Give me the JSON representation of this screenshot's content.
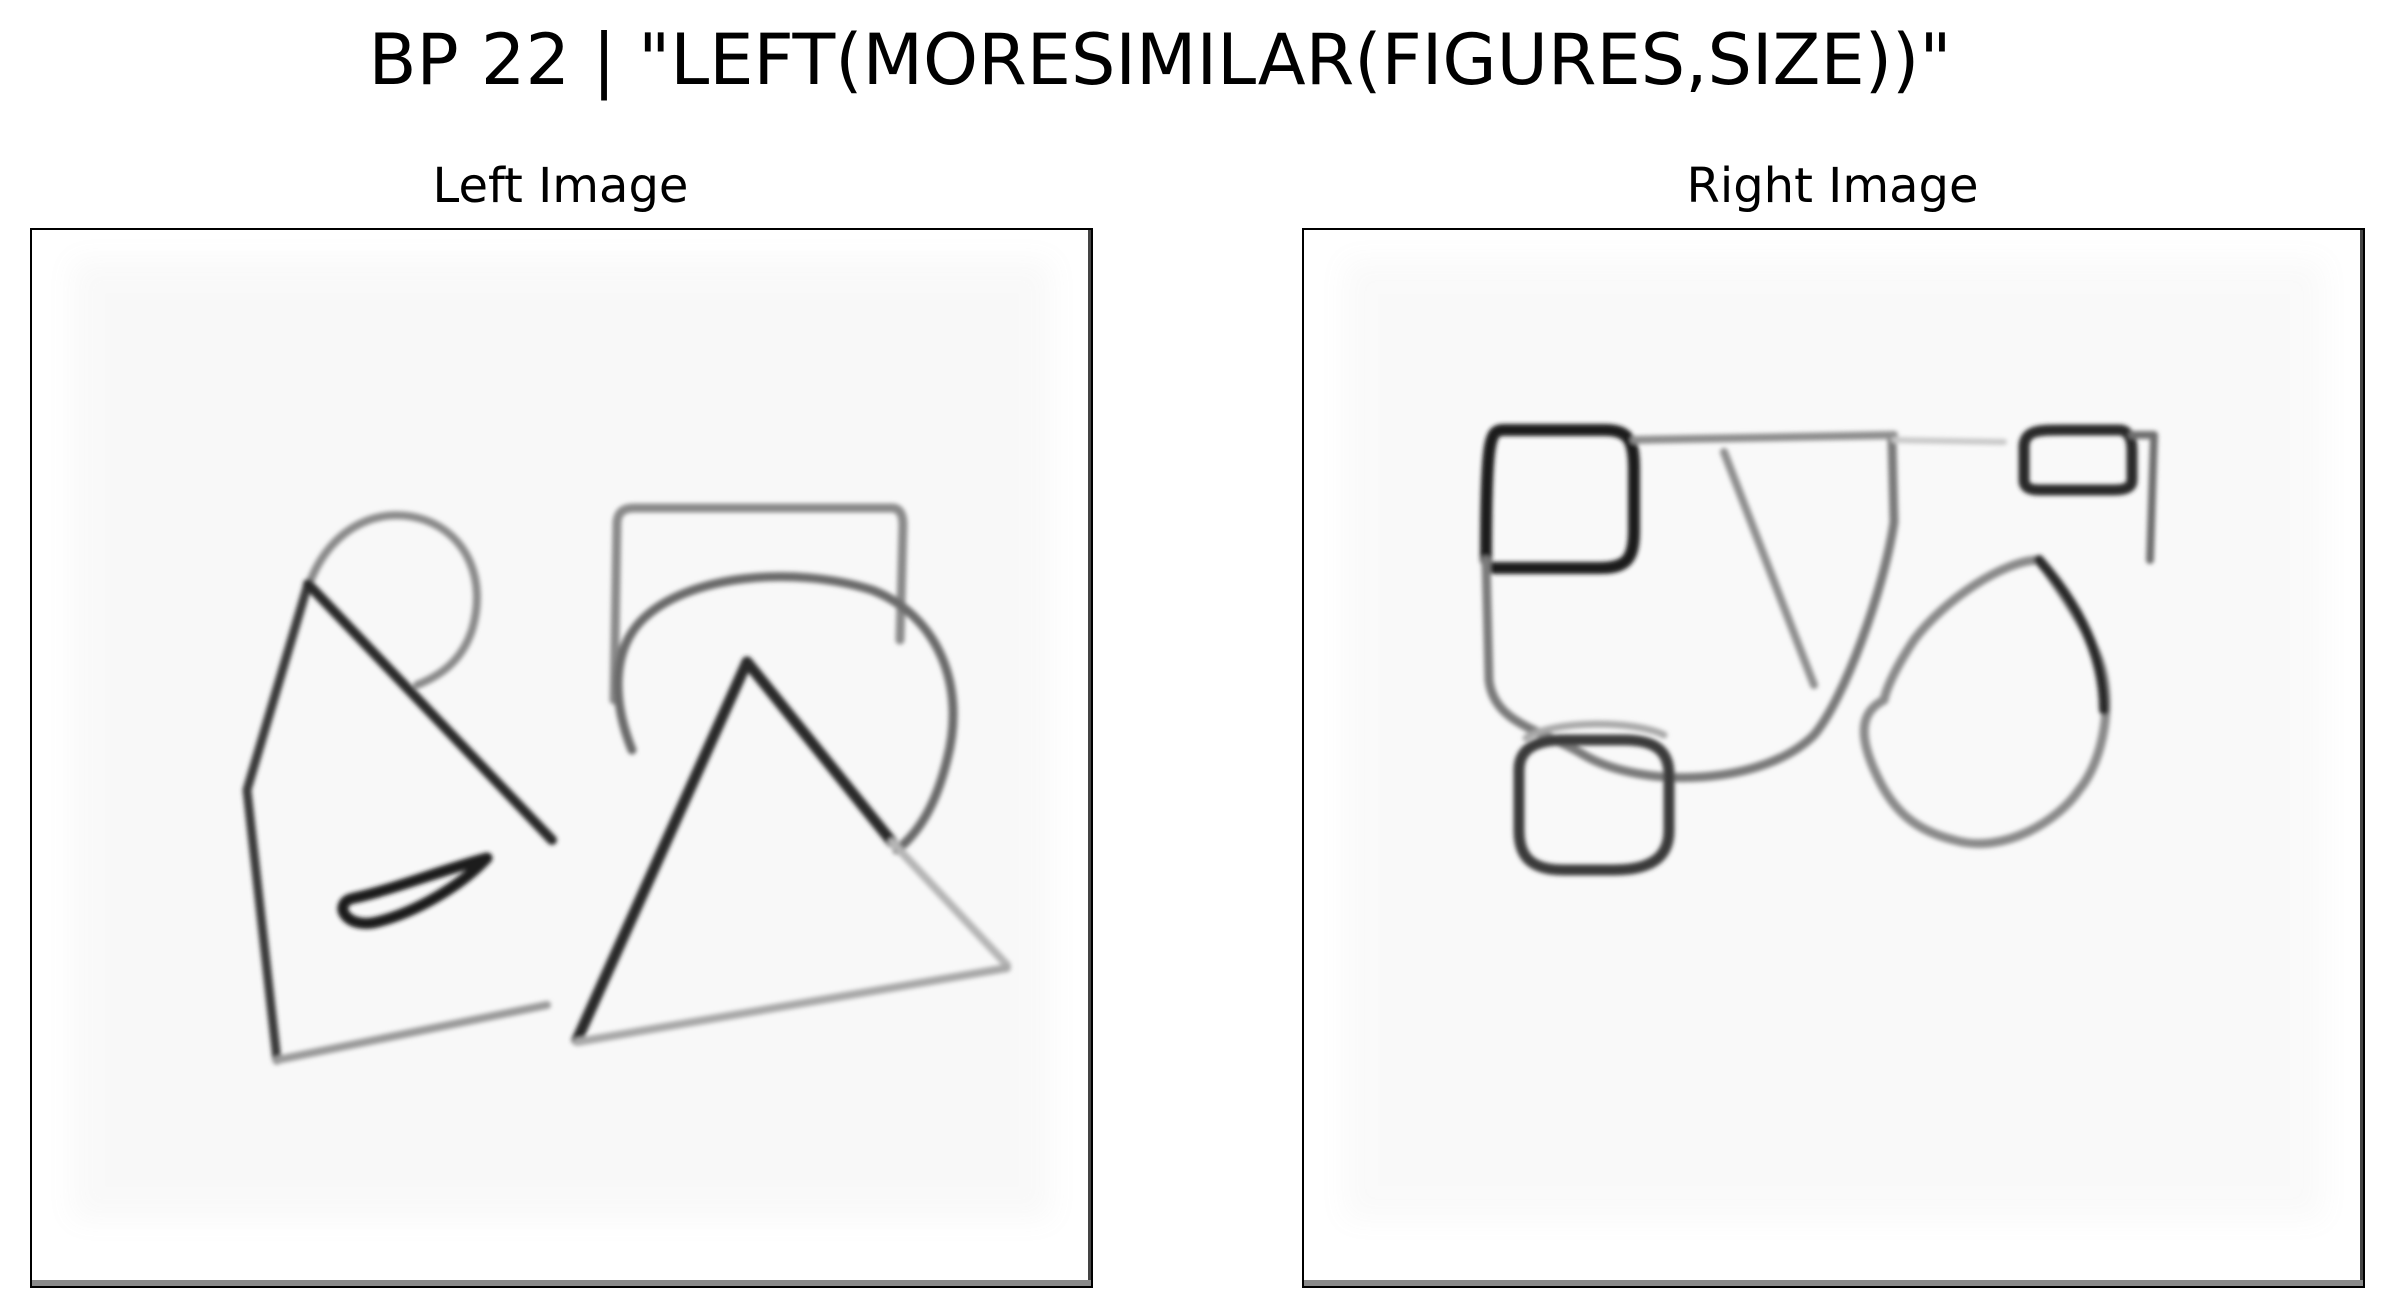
{
  "figure": {
    "title": "BP 22 | \"LEFT(MORESIMILAR(FIGURES,SIZE))\"",
    "panels": [
      {
        "title": "Left Image"
      },
      {
        "title": "Right Image"
      }
    ]
  }
}
